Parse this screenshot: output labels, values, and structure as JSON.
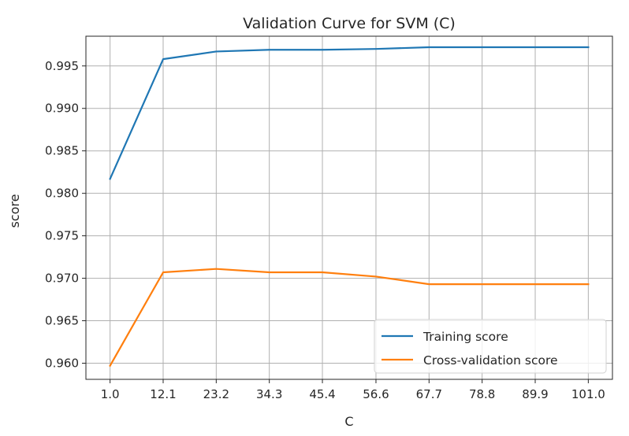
{
  "chart_data": {
    "type": "line",
    "title": "Validation Curve for SVM (C)",
    "xlabel": "C",
    "ylabel": "score",
    "x": [
      1.0,
      12.1,
      23.2,
      34.3,
      45.4,
      56.6,
      67.7,
      78.8,
      89.9,
      101.0
    ],
    "xtick_labels": [
      "1.0",
      "12.1",
      "23.2",
      "34.3",
      "45.4",
      "56.6",
      "67.7",
      "78.8",
      "89.9",
      "101.0"
    ],
    "yticks": [
      0.96,
      0.965,
      0.97,
      0.975,
      0.98,
      0.985,
      0.99,
      0.995
    ],
    "ytick_labels": [
      "0.960",
      "0.965",
      "0.970",
      "0.975",
      "0.980",
      "0.985",
      "0.990",
      "0.995"
    ],
    "xlim": [
      -4.05,
      106.05
    ],
    "ylim": [
      0.9581,
      0.9985
    ],
    "grid": true,
    "legend_position": "lower-right",
    "series": [
      {
        "name": "Training score",
        "color": "#1f77b4",
        "values": [
          0.9817,
          0.9958,
          0.9967,
          0.9969,
          0.9969,
          0.997,
          0.9972,
          0.9972,
          0.9972,
          0.9972
        ]
      },
      {
        "name": "Cross-validation score",
        "color": "#ff7f0e",
        "values": [
          0.9597,
          0.9707,
          0.9711,
          0.9707,
          0.9707,
          0.9702,
          0.9693,
          0.9693,
          0.9693,
          0.9693
        ]
      }
    ]
  }
}
